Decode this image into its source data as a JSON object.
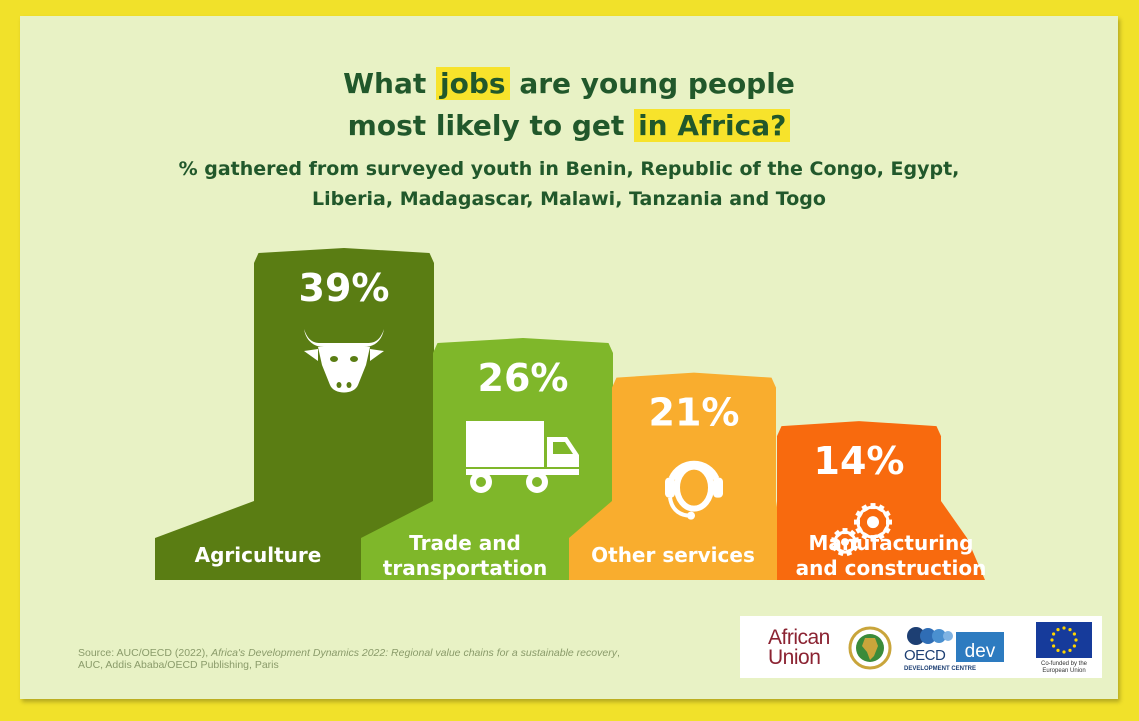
{
  "header": {
    "title_pre": "What ",
    "title_hl1": "jobs",
    "title_mid": " are young people",
    "title_line2": "most likely to get ",
    "title_hl2": "in Africa?",
    "subtitle_line1": "% gathered from surveyed youth in Benin, Republic of the Congo, Egypt,",
    "subtitle_line2": "Liberia, Madagascar, Malawi, Tanzania and Togo"
  },
  "chart_data": {
    "type": "bar",
    "categories": [
      "Agriculture",
      "Trade and transportation",
      "Other services",
      "Manufacturing and construction"
    ],
    "category_lines": [
      [
        "Agriculture"
      ],
      [
        "Trade and",
        "transportation"
      ],
      [
        "Other services"
      ],
      [
        "Manufacturing",
        "and construction"
      ]
    ],
    "values": [
      39,
      26,
      21,
      14
    ],
    "value_labels": [
      "39%",
      "26%",
      "21%",
      "14%"
    ],
    "unit": "%",
    "icons": [
      "cow-icon",
      "truck-icon",
      "headset-icon",
      "gears-icon"
    ],
    "colors": [
      "#5a7d13",
      "#7fb72a",
      "#f9ad2e",
      "#f86a0e"
    ],
    "colors_light": [
      "#6f9417",
      "#93c43a",
      "#fbbf55",
      "#fa8234"
    ],
    "colors_dark": [
      "#40600a",
      "#5f941c",
      "#e08f19",
      "#e0520a"
    ]
  },
  "source": {
    "prefix": "Source: AUC/OECD (2022), ",
    "title": "Africa's Development Dynamics 2022: Regional value chains for a sustainable recovery",
    "suffix": ",",
    "line2": "AUC, Addis Ababa/OECD Publishing, Paris"
  },
  "logos": {
    "au_line1": "African",
    "au_line2": "Union",
    "oecd": "OECD",
    "dev": "dev",
    "oecd_sub": "DEVELOPMENT CENTRE",
    "eu_line1": "Co-funded by the",
    "eu_line2": "European Union",
    "au_color": "#8b2332",
    "oecd_color": "#1d3f73",
    "eu_flag_color": "#163b9b"
  }
}
